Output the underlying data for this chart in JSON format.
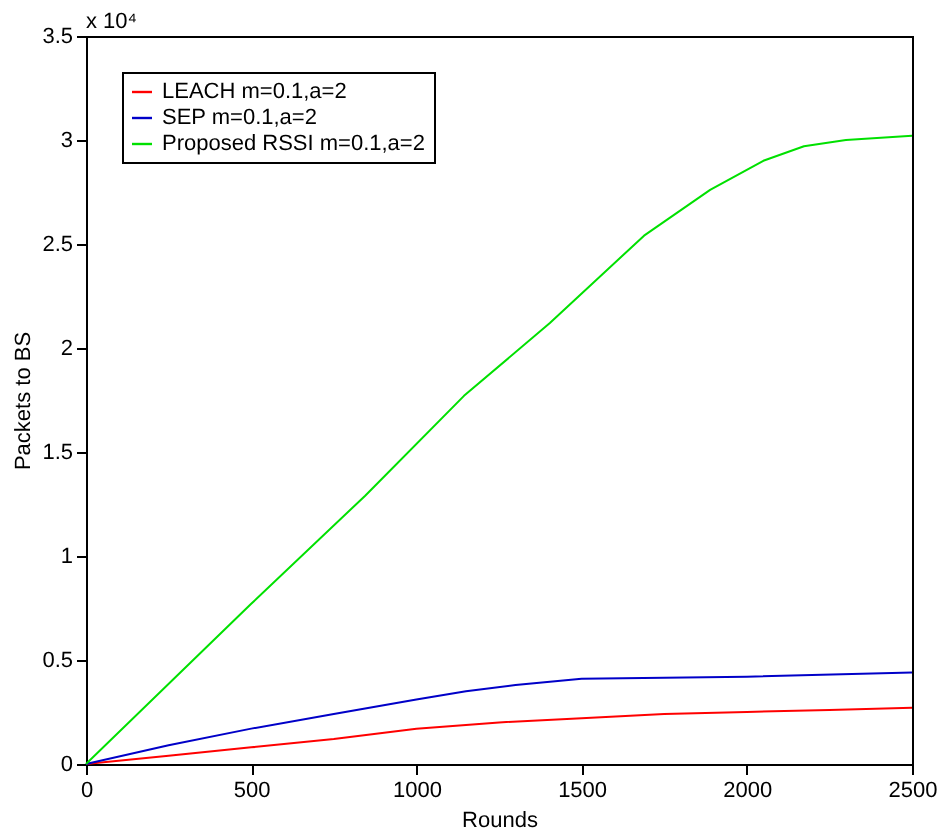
{
  "chart_data": {
    "type": "line",
    "xlabel": "Rounds",
    "ylabel": "Packets to BS",
    "annotations": [
      "x 10⁴"
    ],
    "xlim": [
      0,
      2500
    ],
    "xticks": [
      0,
      500,
      1000,
      1500,
      2000,
      2500
    ],
    "ylim": [
      0,
      3.5
    ],
    "yticks": [
      0,
      0.5,
      1,
      1.5,
      2,
      2.5,
      3,
      3.5
    ],
    "grid": false,
    "legend": "top left",
    "line_style": "solid",
    "marker": "none",
    "series": [
      {
        "name": "LEACH m=0.1,a=2",
        "color": "#ff0000",
        "x": [
          0,
          250,
          500,
          750,
          1000,
          1250,
          1500,
          1750,
          2000,
          2250,
          2500
        ],
        "values": [
          0,
          0.04,
          0.08,
          0.12,
          0.17,
          0.2,
          0.22,
          0.24,
          0.25,
          0.26,
          0.27
        ]
      },
      {
        "name": "SEP m=0.1,a=2",
        "color": "#0000c8",
        "x": [
          0,
          250,
          500,
          750,
          1000,
          1150,
          1300,
          1500,
          2000,
          2500
        ],
        "values": [
          0,
          0.09,
          0.17,
          0.24,
          0.31,
          0.35,
          0.38,
          0.41,
          0.42,
          0.44
        ]
      },
      {
        "name": "Proposed RSSI m=0.1,a=2",
        "color": "#00e000",
        "x": [
          0,
          500,
          845,
          1144,
          1404,
          1689,
          1889,
          2050,
          2173,
          2300,
          2500
        ],
        "values": [
          0,
          0.77,
          1.29,
          1.77,
          2.12,
          2.54,
          2.76,
          2.9,
          2.97,
          3.0,
          3.02
        ]
      }
    ]
  }
}
